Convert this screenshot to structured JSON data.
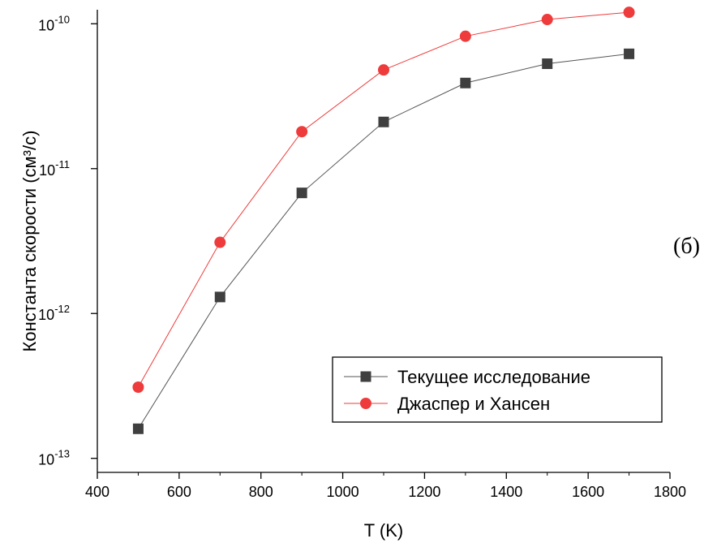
{
  "panel_label": "(б)",
  "chart_data": {
    "type": "line",
    "xlabel": "T (K)",
    "ylabel": "Константа скорости (см³/с)",
    "xlim": [
      400,
      1800
    ],
    "ylim": [
      8e-14,
      1.25e-10
    ],
    "yscale": "log",
    "x_ticks": [
      "400",
      "600",
      "800",
      "1000",
      "1200",
      "1400",
      "1600",
      "1800"
    ],
    "y_ticks": [
      {
        "base": "10",
        "exp": "-13"
      },
      {
        "base": "10",
        "exp": "-12"
      },
      {
        "base": "10",
        "exp": "-11"
      },
      {
        "base": "10",
        "exp": "-10"
      }
    ],
    "legend_position": "bottom-right",
    "grid": false,
    "x": [
      500,
      700,
      900,
      1100,
      1300,
      1500,
      1700
    ],
    "series": [
      {
        "name": "Текущее исследование",
        "marker": "square",
        "marker_color": "#3f3f3f",
        "line_color": "#555555",
        "values": [
          1.6e-13,
          1.3e-12,
          6.8e-12,
          2.1e-11,
          3.9e-11,
          5.3e-11,
          6.2e-11
        ]
      },
      {
        "name": "Джаспер и Хансен",
        "marker": "circle",
        "marker_color": "#ee3b3b",
        "line_color": "#ee3b3b",
        "values": [
          3.1e-13,
          3.1e-12,
          1.8e-11,
          4.8e-11,
          8.2e-11,
          1.07e-10,
          1.2e-10
        ]
      }
    ]
  }
}
